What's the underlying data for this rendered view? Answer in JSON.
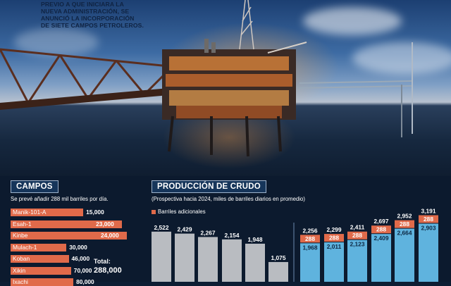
{
  "intro_lines": [
    "PREVIO A QUE INICIARA LA",
    "NUEVA ADMINISTRACIÓN, SE",
    "ANUNCIÓ LA INCORPORACIÓN",
    "DE SIETE CAMPOS PETROLEROS."
  ],
  "campos": {
    "title": "CAMPOS",
    "subtitle": "Se prevé añadir 288 mil barriles por día.",
    "total_label": "Total:",
    "total_value": "288,000",
    "fields": [
      {
        "name": "Manik-101-A",
        "value": 15000,
        "label": "15,000"
      },
      {
        "name": "Esah-1",
        "value": 23000,
        "label": "23,000"
      },
      {
        "name": "Kinbe",
        "value": 24000,
        "label": "24,000"
      },
      {
        "name": "Mulach-1",
        "value": 30000,
        "label": "30,000"
      },
      {
        "name": "Koban",
        "value": 46000,
        "label": "46,000"
      },
      {
        "name": "Xikin",
        "value": 70000,
        "label": "70,000"
      },
      {
        "name": "Ixachi",
        "value": 80000,
        "label": "80,000"
      }
    ]
  },
  "produccion": {
    "title": "PRODUCCIÓN DE CRUDO",
    "subtitle": "(Prospectiva hacia 2024, miles de barriles diarios en promedio)",
    "legend_label": "Barriles adicionales"
  },
  "chart_data": {
    "type": "bar",
    "title": "PRODUCCIÓN DE CRUDO",
    "subtitle": "(Prospectiva hacia 2024, miles de barriles diarios en promedio)",
    "series": [
      {
        "name": "",
        "values": [
          2522,
          2429,
          2267,
          2154,
          1948,
          1075,
          null,
          null,
          null,
          null,
          null,
          null
        ],
        "color": "#b9bcc1"
      },
      {
        "name": "",
        "values": [
          null,
          null,
          null,
          null,
          null,
          null,
          1968,
          2011,
          2123,
          2409,
          2664,
          2903
        ],
        "color": "#5fb3de"
      },
      {
        "name": "Barriles adicionales",
        "values": [
          null,
          null,
          null,
          null,
          null,
          null,
          288,
          288,
          288,
          288,
          288,
          288
        ],
        "color": "#e06a4a"
      }
    ],
    "totals": [
      null,
      null,
      null,
      null,
      null,
      null,
      2256,
      2299,
      2411,
      2697,
      2952,
      3191
    ],
    "legend": "top-left"
  },
  "colors": {
    "accent": "#e06a4a",
    "historic": "#b9bcc1",
    "projected": "#5fb3de",
    "title_bg": "#16355a"
  }
}
